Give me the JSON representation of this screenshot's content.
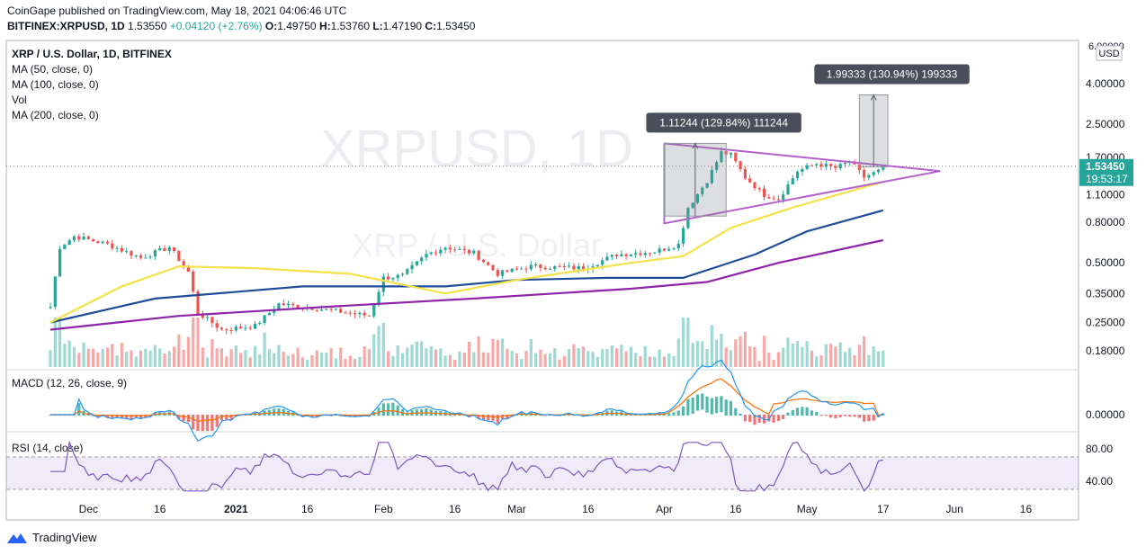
{
  "header": {
    "publisher_line": "CoinGape published on TradingView.com, May 18, 2021 04:06:46 UTC",
    "symbol": "BITFINEX:XRPUSD, 1D",
    "last": "1.53550",
    "change": "+0.04120 (+2.76%)",
    "o_label": "O:",
    "o_value": "1.49750",
    "h_label": "H:",
    "h_value": "1.53760",
    "l_label": "L:",
    "l_value": "1.47190",
    "c_label": "C:",
    "c_value": "1.53450"
  },
  "footer": {
    "brand": "TradingView"
  },
  "chart_data": {
    "type": "candlestick",
    "title": "XRP / U.S. Dollar, 1D, BITFINEX",
    "watermark": "XRPUSD, 1D",
    "watermark_sub": "XRP / U.S. Dollar",
    "currency_label": "USD",
    "legend": [
      "MA (50, close, 0)",
      "MA (100, close, 0)",
      "Vol",
      "MA (200, close, 0)"
    ],
    "y_scale": "log",
    "y_ticks": [
      "4.00000",
      "2.50000",
      "1.70000",
      "1.10000",
      "0.80000",
      "0.50000",
      "0.35000",
      "0.25000",
      "0.18000"
    ],
    "last_price": "1.53450",
    "countdown": "19:53:17",
    "x_ticks": [
      "Dec",
      "16",
      "2021",
      "16",
      "Feb",
      "16",
      "Mar",
      "16",
      "Apr",
      "16",
      "May",
      "17",
      "Jun",
      "16"
    ],
    "price_keypoints": [
      {
        "date": "2020-11-23",
        "close": 0.3
      },
      {
        "date": "2020-11-25",
        "close": 0.6
      },
      {
        "date": "2020-11-28",
        "close": 0.68
      },
      {
        "date": "2020-12-05",
        "close": 0.62
      },
      {
        "date": "2020-12-12",
        "close": 0.53
      },
      {
        "date": "2020-12-18",
        "close": 0.6
      },
      {
        "date": "2020-12-22",
        "close": 0.45
      },
      {
        "date": "2020-12-24",
        "close": 0.28
      },
      {
        "date": "2020-12-29",
        "close": 0.23
      },
      {
        "date": "2021-01-05",
        "close": 0.24
      },
      {
        "date": "2021-01-10",
        "close": 0.31
      },
      {
        "date": "2021-01-20",
        "close": 0.29
      },
      {
        "date": "2021-01-29",
        "close": 0.27
      },
      {
        "date": "2021-02-01",
        "close": 0.42
      },
      {
        "date": "2021-02-05",
        "close": 0.43
      },
      {
        "date": "2021-02-10",
        "close": 0.55
      },
      {
        "date": "2021-02-14",
        "close": 0.6
      },
      {
        "date": "2021-02-20",
        "close": 0.56
      },
      {
        "date": "2021-02-25",
        "close": 0.44
      },
      {
        "date": "2021-03-04",
        "close": 0.48
      },
      {
        "date": "2021-03-15",
        "close": 0.47
      },
      {
        "date": "2021-03-22",
        "close": 0.55
      },
      {
        "date": "2021-03-30",
        "close": 0.57
      },
      {
        "date": "2021-04-04",
        "close": 0.62
      },
      {
        "date": "2021-04-06",
        "close": 0.95
      },
      {
        "date": "2021-04-10",
        "close": 1.3
      },
      {
        "date": "2021-04-13",
        "close": 1.8
      },
      {
        "date": "2021-04-15",
        "close": 1.75
      },
      {
        "date": "2021-04-18",
        "close": 1.35
      },
      {
        "date": "2021-04-22",
        "close": 1.1
      },
      {
        "date": "2021-04-25",
        "close": 1.05
      },
      {
        "date": "2021-04-29",
        "close": 1.45
      },
      {
        "date": "2021-05-03",
        "close": 1.58
      },
      {
        "date": "2021-05-07",
        "close": 1.5
      },
      {
        "date": "2021-05-10",
        "close": 1.62
      },
      {
        "date": "2021-05-13",
        "close": 1.35
      },
      {
        "date": "2021-05-16",
        "close": 1.45
      },
      {
        "date": "2021-05-17",
        "close": 1.53
      }
    ],
    "ma50": [
      {
        "date": "2020-11-23",
        "value": 0.25
      },
      {
        "date": "2020-12-08",
        "value": 0.38
      },
      {
        "date": "2020-12-20",
        "value": 0.48
      },
      {
        "date": "2021-01-05",
        "value": 0.47
      },
      {
        "date": "2021-01-25",
        "value": 0.44
      },
      {
        "date": "2021-02-14",
        "value": 0.35
      },
      {
        "date": "2021-03-01",
        "value": 0.41
      },
      {
        "date": "2021-03-25",
        "value": 0.5
      },
      {
        "date": "2021-04-05",
        "value": 0.54
      },
      {
        "date": "2021-04-15",
        "value": 0.75
      },
      {
        "date": "2021-04-28",
        "value": 0.95
      },
      {
        "date": "2021-05-17",
        "value": 1.28
      }
    ],
    "ma100": [
      {
        "date": "2020-11-23",
        "value": 0.25
      },
      {
        "date": "2020-12-15",
        "value": 0.33
      },
      {
        "date": "2021-01-15",
        "value": 0.38
      },
      {
        "date": "2021-02-14",
        "value": 0.38
      },
      {
        "date": "2021-03-01",
        "value": 0.41
      },
      {
        "date": "2021-03-20",
        "value": 0.42
      },
      {
        "date": "2021-04-05",
        "value": 0.42
      },
      {
        "date": "2021-04-20",
        "value": 0.55
      },
      {
        "date": "2021-05-01",
        "value": 0.72
      },
      {
        "date": "2021-05-17",
        "value": 0.92
      }
    ],
    "ma200": [
      {
        "date": "2020-11-23",
        "value": 0.23
      },
      {
        "date": "2020-12-20",
        "value": 0.27
      },
      {
        "date": "2021-01-20",
        "value": 0.3
      },
      {
        "date": "2021-02-20",
        "value": 0.33
      },
      {
        "date": "2021-03-25",
        "value": 0.37
      },
      {
        "date": "2021-04-10",
        "value": 0.4
      },
      {
        "date": "2021-04-25",
        "value": 0.5
      },
      {
        "date": "2021-05-17",
        "value": 0.65
      }
    ],
    "triangle": {
      "upper_start": {
        "date": "2021-04-01",
        "value": 2.0
      },
      "lower_start": {
        "date": "2021-04-01",
        "value": 0.79
      },
      "apex": {
        "date": "2021-05-29",
        "value": 1.45
      }
    },
    "measure_1": {
      "label": "1.11244 (129.84%) 111244",
      "from_date": "2021-04-01",
      "to_date": "2021-04-14",
      "low": 0.86,
      "high": 2.0
    },
    "measure_2": {
      "label": "1.99333 (130.94%) 199333",
      "from_date": "2021-05-12",
      "to_date": "2021-05-18",
      "low": 1.52,
      "high": 3.51
    },
    "macd": {
      "label": "MACD (12, 26, close, 9)",
      "y_ticks": [
        "0.00000"
      ]
    },
    "rsi": {
      "label": "RSI (14, close)",
      "y_ticks": [
        "80.00",
        "40.00"
      ],
      "upper": 70,
      "lower": 30
    },
    "colors": {
      "up": "#26a69a",
      "down": "#ef5350",
      "ma50": "#f5e14a",
      "ma100": "#1f4e99",
      "ma200": "#8e24aa",
      "triangle": "#b660cd",
      "rsi": "#7e57c2",
      "macd": "#2196f3",
      "signal": "#ff6d00"
    }
  }
}
